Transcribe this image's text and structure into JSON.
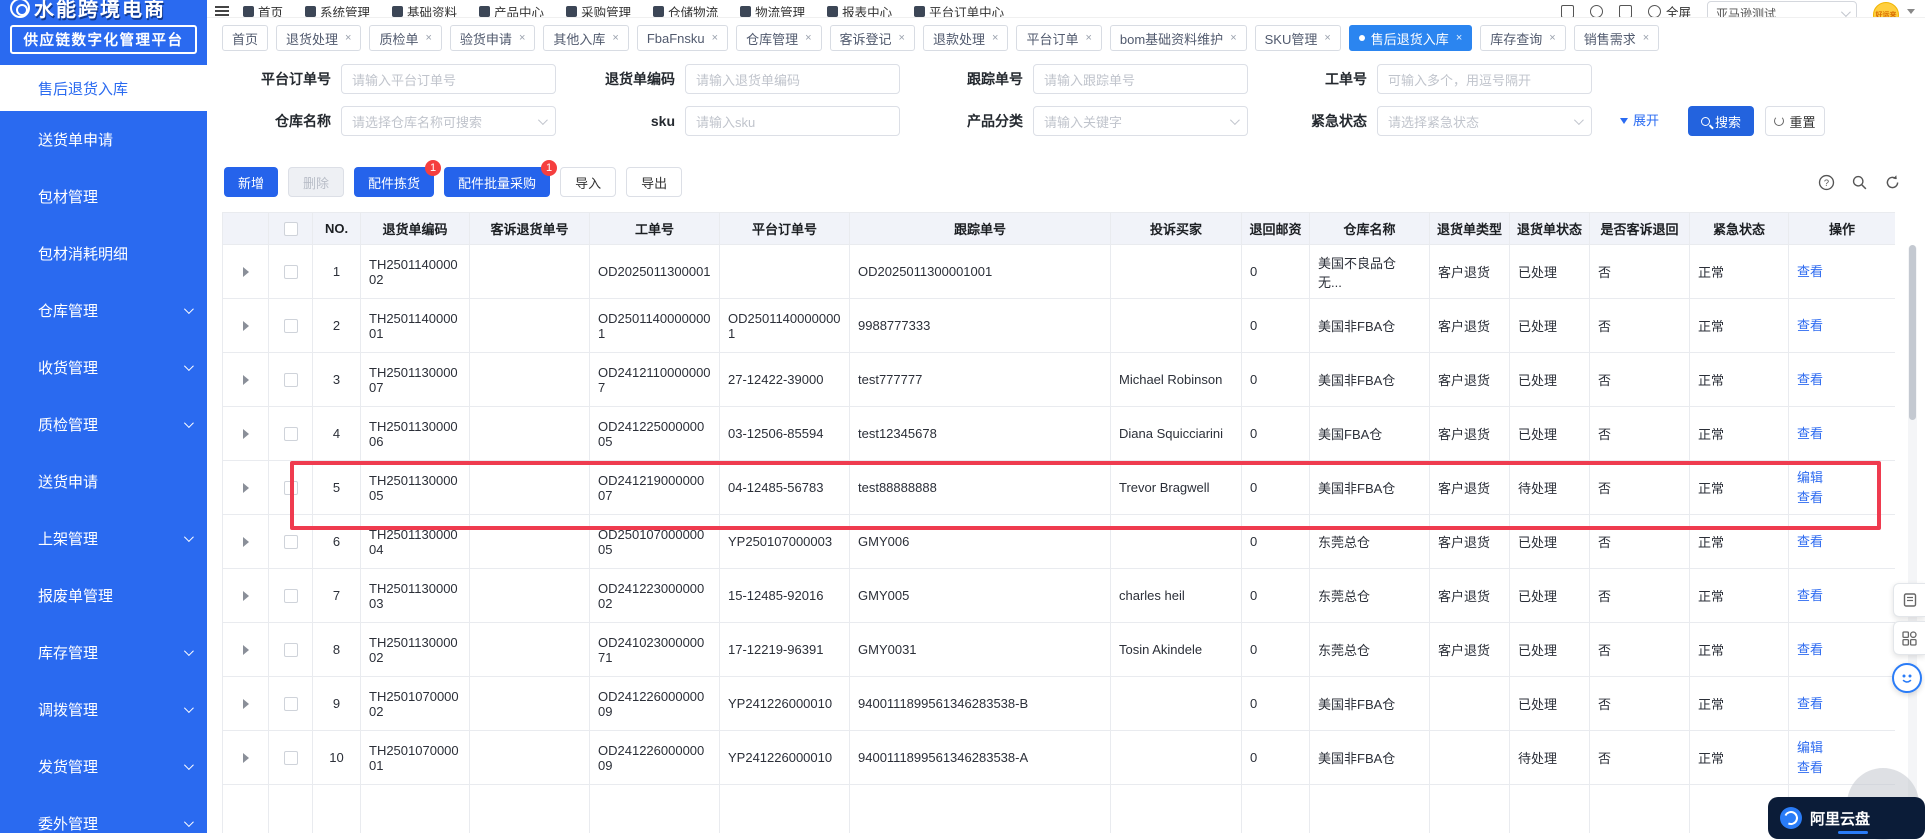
{
  "topbar": {
    "menu_items": [
      "首页",
      "系统管理",
      "基础资料",
      "产品中心",
      "采购管理",
      "仓储物流",
      "物流管理",
      "报表中心",
      "平台订单中心"
    ],
    "fullscreen_label": "全屏",
    "account_select_value": "亚马逊测试",
    "avatar_text": "好运来"
  },
  "logo": {
    "brand": "水能跨境电商",
    "subtitle": "供应链数字化管理平台"
  },
  "sidebar": {
    "items": [
      {
        "label": "售后退货入库",
        "active": true,
        "chevron": false
      },
      {
        "label": "送货单申请",
        "chevron": false
      },
      {
        "label": "包材管理",
        "chevron": false
      },
      {
        "label": "包材消耗明细",
        "chevron": false
      },
      {
        "label": "仓库管理",
        "chevron": true
      },
      {
        "label": "收货管理",
        "chevron": true
      },
      {
        "label": "质检管理",
        "chevron": true
      },
      {
        "label": "送货申请",
        "chevron": false
      },
      {
        "label": "上架管理",
        "chevron": true
      },
      {
        "label": "报废单管理",
        "chevron": false
      },
      {
        "label": "库存管理",
        "chevron": true
      },
      {
        "label": "调拨管理",
        "chevron": true
      },
      {
        "label": "发货管理",
        "chevron": true
      },
      {
        "label": "委外管理",
        "chevron": true
      }
    ]
  },
  "tabs": [
    {
      "label": "首页",
      "closable": false,
      "active": false
    },
    {
      "label": "退货处理",
      "closable": true,
      "active": false
    },
    {
      "label": "质检单",
      "closable": true,
      "active": false
    },
    {
      "label": "验货申请",
      "closable": true,
      "active": false
    },
    {
      "label": "其他入库",
      "closable": true,
      "active": false
    },
    {
      "label": "FbaFnsku",
      "closable": true,
      "active": false
    },
    {
      "label": "仓库管理",
      "closable": true,
      "active": false
    },
    {
      "label": "客诉登记",
      "closable": true,
      "active": false
    },
    {
      "label": "退款处理",
      "closable": true,
      "active": false
    },
    {
      "label": "平台订单",
      "closable": true,
      "active": false
    },
    {
      "label": "bom基础资料维护",
      "closable": true,
      "active": false
    },
    {
      "label": "SKU管理",
      "closable": true,
      "active": false
    },
    {
      "label": "售后退货入库",
      "closable": true,
      "active": true
    },
    {
      "label": "库存查询",
      "closable": true,
      "active": false
    },
    {
      "label": "销售需求",
      "closable": true,
      "active": false
    }
  ],
  "filters": {
    "row1": [
      {
        "label": "平台订单号",
        "placeholder": "请输入平台订单号",
        "type": "input"
      },
      {
        "label": "退货单编码",
        "placeholder": "请输入退货单编码",
        "type": "input"
      },
      {
        "label": "跟踪单号",
        "placeholder": "请输入跟踪单号",
        "type": "input"
      },
      {
        "label": "工单号",
        "placeholder": "可输入多个，用逗号隔开",
        "type": "input"
      }
    ],
    "row2": [
      {
        "label": "仓库名称",
        "placeholder": "请选择仓库名称可搜索",
        "type": "select"
      },
      {
        "label": "sku",
        "placeholder": "请输入sku",
        "type": "input"
      },
      {
        "label": "产品分类",
        "placeholder": "请输入关键字",
        "type": "select"
      },
      {
        "label": "紧急状态",
        "placeholder": "请选择紧急状态",
        "type": "select"
      }
    ],
    "expand_label": "展开",
    "search_label": "搜索",
    "reset_label": "重置"
  },
  "toolbar": {
    "buttons": [
      {
        "label": "新增",
        "style": "primary",
        "badge": ""
      },
      {
        "label": "删除",
        "style": "disabled",
        "badge": ""
      },
      {
        "label": "配件拣货",
        "style": "primary",
        "badge": "1"
      },
      {
        "label": "配件批量采购",
        "style": "primary",
        "badge": "1"
      },
      {
        "label": "导入",
        "style": "default",
        "badge": ""
      },
      {
        "label": "导出",
        "style": "default",
        "badge": ""
      }
    ]
  },
  "table": {
    "columns": [
      "NO.",
      "退货单编码",
      "客诉退货单号",
      "工单号",
      "平台订单号",
      "跟踪单号",
      "投诉买家",
      "退回邮资",
      "仓库名称",
      "退货单类型",
      "退货单状态",
      "是否客诉退回",
      "紧急状态",
      "操作"
    ],
    "highlight_row": 5,
    "rows": [
      {
        "no": "1",
        "code": "TH250114000002",
        "complaint_no": "",
        "work_no": "OD2025011300001",
        "platform_no": "",
        "tracking_no": "OD2025011300001001",
        "buyer": "",
        "postage": "0",
        "warehouse": "美国不良品仓 无...",
        "type": "客户退货",
        "status": "已处理",
        "complaint_return": "否",
        "urgency": "正常",
        "actions": [
          "查看"
        ]
      },
      {
        "no": "2",
        "code": "TH250114000001",
        "complaint_no": "",
        "work_no": "OD25011400000001",
        "platform_no": "OD25011400000001",
        "tracking_no": "9988777333",
        "buyer": "",
        "postage": "0",
        "warehouse": "美国非FBA仓",
        "type": "客户退货",
        "status": "已处理",
        "complaint_return": "否",
        "urgency": "正常",
        "actions": [
          "查看"
        ]
      },
      {
        "no": "3",
        "code": "TH250113000007",
        "complaint_no": "",
        "work_no": "OD24121100000007",
        "platform_no": "27-12422-39000",
        "tracking_no": "test777777",
        "buyer": "Michael Robinson",
        "postage": "0",
        "warehouse": "美国非FBA仓",
        "type": "客户退货",
        "status": "已处理",
        "complaint_return": "否",
        "urgency": "正常",
        "actions": [
          "查看"
        ]
      },
      {
        "no": "4",
        "code": "TH250113000006",
        "complaint_no": "",
        "work_no": "OD24122500000005",
        "platform_no": "03-12506-85594",
        "tracking_no": "test12345678",
        "buyer": "Diana Squicciarini",
        "postage": "0",
        "warehouse": "美国FBA仓",
        "type": "客户退货",
        "status": "已处理",
        "complaint_return": "否",
        "urgency": "正常",
        "actions": [
          "查看"
        ]
      },
      {
        "no": "5",
        "code": "TH250113000005",
        "complaint_no": "",
        "work_no": "OD24121900000007",
        "platform_no": "04-12485-56783",
        "tracking_no": "test88888888",
        "buyer": "Trevor Bragwell",
        "postage": "0",
        "warehouse": "美国非FBA仓",
        "type": "客户退货",
        "status": "待处理",
        "complaint_return": "否",
        "urgency": "正常",
        "actions": [
          "编辑",
          "查看"
        ]
      },
      {
        "no": "6",
        "code": "TH250113000004",
        "complaint_no": "",
        "work_no": "OD25010700000005",
        "platform_no": "YP250107000003",
        "tracking_no": "GMY006",
        "buyer": "",
        "postage": "0",
        "warehouse": "东莞总仓",
        "type": "客户退货",
        "status": "已处理",
        "complaint_return": "否",
        "urgency": "正常",
        "actions": [
          "查看"
        ]
      },
      {
        "no": "7",
        "code": "TH250113000003",
        "complaint_no": "",
        "work_no": "OD24122300000002",
        "platform_no": "15-12485-92016",
        "tracking_no": "GMY005",
        "buyer": "charles heil",
        "postage": "0",
        "warehouse": "东莞总仓",
        "type": "客户退货",
        "status": "已处理",
        "complaint_return": "否",
        "urgency": "正常",
        "actions": [
          "查看"
        ]
      },
      {
        "no": "8",
        "code": "TH250113000002",
        "complaint_no": "",
        "work_no": "OD24102300000071",
        "platform_no": "17-12219-96391",
        "tracking_no": "GMY0031",
        "buyer": "Tosin Akindele",
        "postage": "0",
        "warehouse": "东莞总仓",
        "type": "客户退货",
        "status": "已处理",
        "complaint_return": "否",
        "urgency": "正常",
        "actions": [
          "查看"
        ]
      },
      {
        "no": "9",
        "code": "TH250107000002",
        "complaint_no": "",
        "work_no": "OD24122600000009",
        "platform_no": "YP241226000010",
        "tracking_no": "9400111899561346283538-B",
        "buyer": "",
        "postage": "0",
        "warehouse": "美国非FBA仓",
        "type": "",
        "status": "已处理",
        "complaint_return": "否",
        "urgency": "正常",
        "actions": [
          "查看"
        ]
      },
      {
        "no": "10",
        "code": "TH250107000001",
        "complaint_no": "",
        "work_no": "OD24122600000009",
        "platform_no": "YP241226000010",
        "tracking_no": "9400111899561346283538-A",
        "buyer": "",
        "postage": "0",
        "warehouse": "美国非FBA仓",
        "type": "",
        "status": "待处理",
        "complaint_return": "否",
        "urgency": "正常",
        "actions": [
          "编辑",
          "查看"
        ]
      }
    ]
  },
  "floaters": {
    "cloud_label": "阿里云盘"
  }
}
